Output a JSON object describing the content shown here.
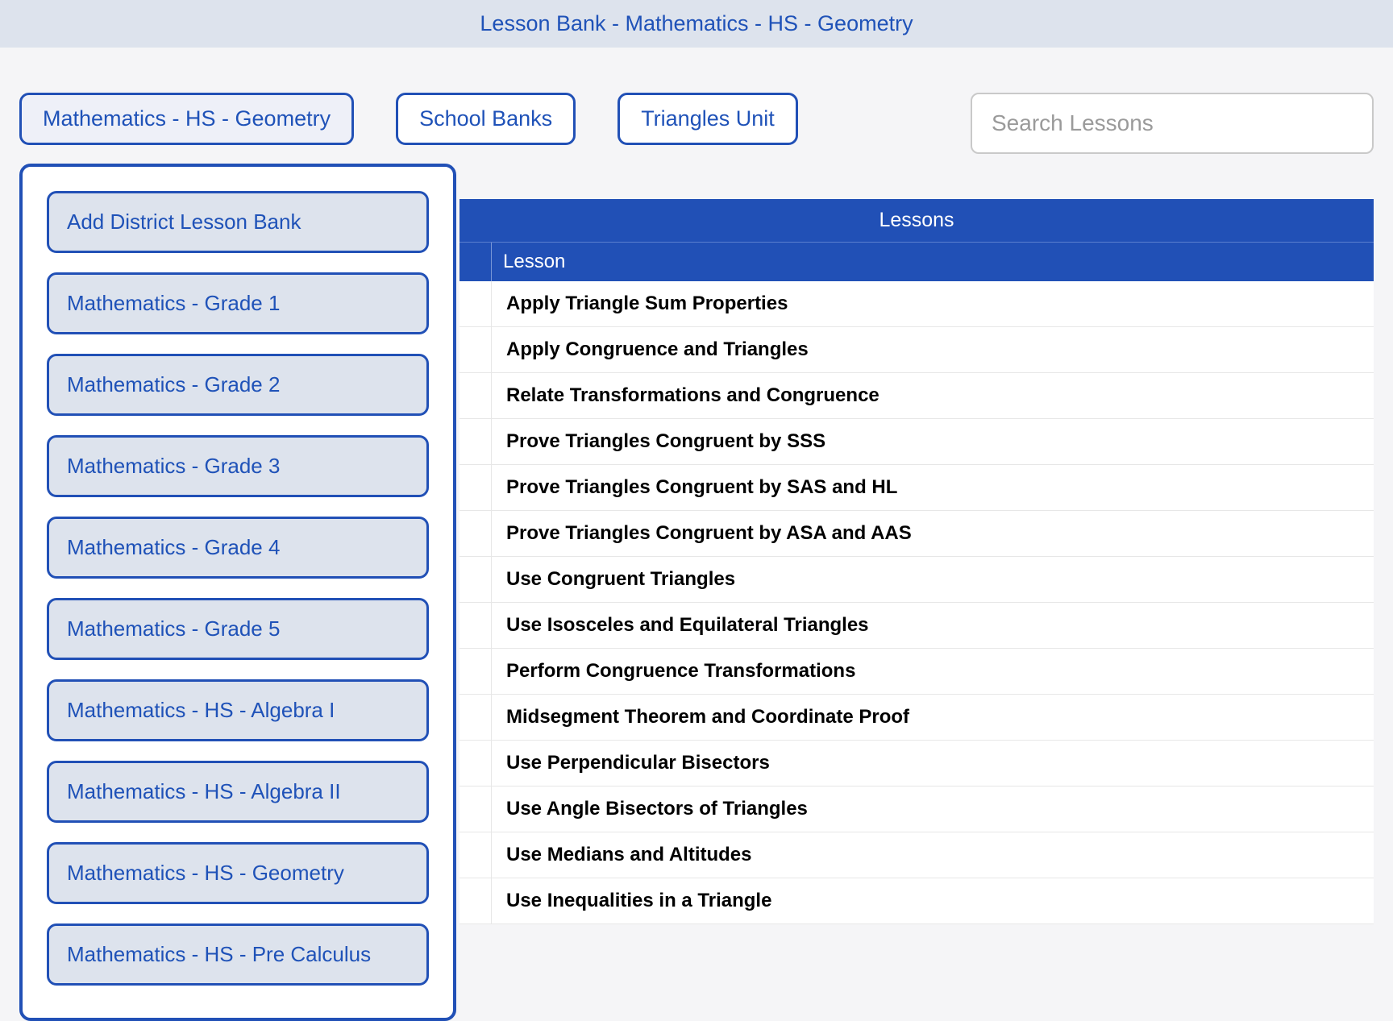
{
  "colors": {
    "page_bg": "#f5f5f7",
    "header_bg": "#dde3ed",
    "accent_blue": "#2150b6",
    "link_blue": "#1f52b8",
    "white": "#ffffff",
    "row_border": "#e7e7e7",
    "search_border": "#c9c9c9",
    "placeholder": "#9a9a9a"
  },
  "header": {
    "title": "Lesson Bank - Mathematics - HS - Geometry"
  },
  "controls": {
    "bank_dropdown_label": "Mathematics - HS - Geometry",
    "school_banks_label": "School Banks",
    "unit_label": "Triangles Unit",
    "search_placeholder": "Search Lessons"
  },
  "dropdown": {
    "items": [
      {
        "label": "Add District Lesson Bank"
      },
      {
        "label": "Mathematics - Grade 1"
      },
      {
        "label": "Mathematics - Grade 2"
      },
      {
        "label": "Mathematics - Grade 3"
      },
      {
        "label": "Mathematics - Grade 4"
      },
      {
        "label": "Mathematics - Grade 5"
      },
      {
        "label": "Mathematics - HS - Algebra I"
      },
      {
        "label": "Mathematics - HS - Algebra II"
      },
      {
        "label": "Mathematics - HS - Geometry"
      },
      {
        "label": "Mathematics - HS - Pre Calculus"
      }
    ]
  },
  "table": {
    "title": "Lessons",
    "column_header": "Lesson",
    "rows": [
      {
        "label": "Apply Triangle Sum Properties"
      },
      {
        "label": "Apply Congruence and Triangles"
      },
      {
        "label": "Relate Transformations and Congruence"
      },
      {
        "label": "Prove Triangles Congruent by SSS"
      },
      {
        "label": "Prove Triangles Congruent by SAS and HL"
      },
      {
        "label": "Prove Triangles Congruent by ASA and AAS"
      },
      {
        "label": "Use Congruent Triangles"
      },
      {
        "label": "Use Isosceles and Equilateral Triangles"
      },
      {
        "label": "Perform Congruence Transformations"
      },
      {
        "label": "Midsegment Theorem and Coordinate Proof"
      },
      {
        "label": "Use Perpendicular Bisectors"
      },
      {
        "label": "Use Angle Bisectors of Triangles"
      },
      {
        "label": "Use Medians and Altitudes"
      },
      {
        "label": "Use Inequalities in a Triangle"
      }
    ]
  }
}
